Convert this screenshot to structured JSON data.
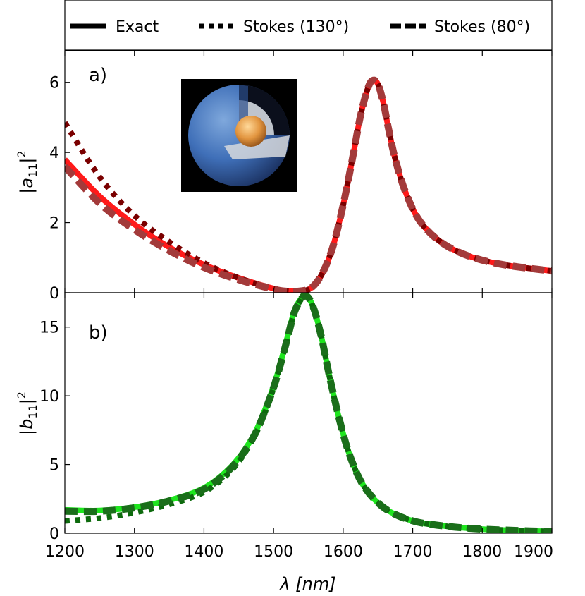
{
  "legend": {
    "entries": [
      {
        "label": "Exact",
        "style": "solid"
      },
      {
        "label": "Stokes (130°)",
        "style": "dotted"
      },
      {
        "label": "Stokes (80°)",
        "style": "dashed"
      }
    ]
  },
  "chart_data": [
    {
      "type": "line",
      "panel_label": "a)",
      "ylabel": "|a11|^2",
      "xlim": [
        1200,
        1900
      ],
      "ylim": [
        0,
        6.9
      ],
      "xticks": [
        1200,
        1300,
        1400,
        1500,
        1600,
        1700,
        1800,
        1900
      ],
      "yticks": [
        0,
        2,
        4,
        6
      ],
      "grid": false,
      "inset_image": "core-shell-sphere-illustration",
      "series": [
        {
          "style": "solid",
          "color": "#ff1a1a",
          "x": [
            1200,
            1250,
            1300,
            1350,
            1400,
            1450,
            1500,
            1520,
            1540,
            1555,
            1570,
            1585,
            1600,
            1615,
            1625,
            1635,
            1642,
            1650,
            1658,
            1665,
            1675,
            1690,
            1710,
            1740,
            1780,
            1830,
            1900
          ],
          "y": [
            3.8,
            2.75,
            1.95,
            1.3,
            0.8,
            0.42,
            0.12,
            0.05,
            0.05,
            0.15,
            0.55,
            1.3,
            2.5,
            4.0,
            5.05,
            5.8,
            6.05,
            5.95,
            5.4,
            4.7,
            3.8,
            2.85,
            2.05,
            1.45,
            1.05,
            0.8,
            0.62
          ]
        },
        {
          "style": "dotted",
          "color": "#7a0000",
          "x": [
            1200,
            1250,
            1300,
            1350,
            1400,
            1450,
            1500,
            1520,
            1540,
            1555,
            1570,
            1585,
            1600,
            1615,
            1625,
            1635,
            1642,
            1650,
            1658,
            1665,
            1675,
            1690,
            1710,
            1740,
            1780,
            1830,
            1900
          ],
          "y": [
            4.85,
            3.3,
            2.2,
            1.45,
            0.85,
            0.42,
            0.12,
            0.05,
            0.05,
            0.15,
            0.55,
            1.3,
            2.5,
            4.0,
            5.05,
            5.8,
            6.05,
            5.95,
            5.4,
            4.7,
            3.8,
            2.85,
            2.05,
            1.45,
            1.05,
            0.8,
            0.62
          ]
        },
        {
          "style": "dashed",
          "color": "#a33a3a",
          "x": [
            1200,
            1250,
            1300,
            1350,
            1400,
            1450,
            1500,
            1520,
            1540,
            1555,
            1570,
            1585,
            1600,
            1615,
            1625,
            1635,
            1642,
            1650,
            1658,
            1665,
            1675,
            1690,
            1710,
            1740,
            1780,
            1830,
            1900
          ],
          "y": [
            3.6,
            2.55,
            1.8,
            1.2,
            0.72,
            0.37,
            0.1,
            0.04,
            0.05,
            0.15,
            0.55,
            1.3,
            2.5,
            4.0,
            5.05,
            5.8,
            6.05,
            5.95,
            5.4,
            4.7,
            3.8,
            2.85,
            2.05,
            1.45,
            1.05,
            0.8,
            0.62
          ]
        }
      ]
    },
    {
      "type": "line",
      "panel_label": "b)",
      "ylabel": "|b11|^2",
      "xlabel": "λ [nm]",
      "xlim": [
        1200,
        1900
      ],
      "ylim": [
        0,
        17.5
      ],
      "xticks": [
        1200,
        1300,
        1400,
        1500,
        1600,
        1700,
        1800,
        1900
      ],
      "yticks": [
        0,
        5,
        10,
        15
      ],
      "grid": false,
      "series": [
        {
          "style": "solid",
          "color": "#1ee61e",
          "x": [
            1200,
            1250,
            1300,
            1350,
            1400,
            1440,
            1470,
            1490,
            1505,
            1520,
            1530,
            1540,
            1545,
            1552,
            1560,
            1570,
            1580,
            1595,
            1610,
            1630,
            1660,
            1700,
            1750,
            1800,
            1850,
            1900
          ],
          "y": [
            1.7,
            1.65,
            1.9,
            2.4,
            3.3,
            4.9,
            7.0,
            9.3,
            11.5,
            14.3,
            16.2,
            17.1,
            17.3,
            17.0,
            16.0,
            14.0,
            11.5,
            8.2,
            5.6,
            3.4,
            1.8,
            0.9,
            0.5,
            0.3,
            0.2,
            0.12
          ]
        },
        {
          "style": "dotted",
          "color": "#0d6a0d",
          "x": [
            1200,
            1250,
            1300,
            1350,
            1400,
            1440,
            1470,
            1490,
            1505,
            1520,
            1530,
            1540,
            1545,
            1552,
            1560,
            1570,
            1580,
            1595,
            1610,
            1630,
            1660,
            1700,
            1750,
            1800,
            1850,
            1900
          ],
          "y": [
            0.9,
            1.1,
            1.5,
            2.1,
            3.0,
            4.6,
            6.8,
            9.1,
            11.4,
            14.2,
            16.1,
            17.05,
            17.3,
            17.0,
            16.0,
            14.0,
            11.5,
            8.2,
            5.6,
            3.4,
            1.8,
            0.9,
            0.5,
            0.3,
            0.2,
            0.12
          ]
        },
        {
          "style": "dashed",
          "color": "#1a6e1a",
          "x": [
            1200,
            1250,
            1300,
            1350,
            1400,
            1440,
            1470,
            1490,
            1505,
            1520,
            1530,
            1540,
            1545,
            1552,
            1560,
            1570,
            1580,
            1595,
            1610,
            1630,
            1660,
            1700,
            1750,
            1800,
            1850,
            1900
          ],
          "y": [
            1.6,
            1.6,
            1.85,
            2.35,
            3.2,
            4.8,
            6.9,
            9.2,
            11.4,
            14.2,
            16.1,
            17.05,
            17.3,
            17.0,
            16.0,
            14.0,
            11.5,
            8.2,
            5.6,
            3.4,
            1.8,
            0.9,
            0.5,
            0.3,
            0.2,
            0.12
          ]
        }
      ]
    }
  ]
}
